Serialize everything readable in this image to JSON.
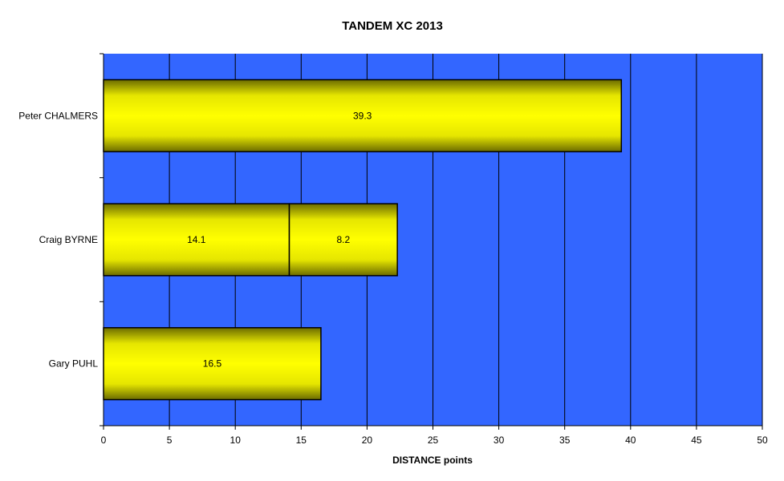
{
  "chart_data": {
    "type": "bar",
    "orientation": "horizontal",
    "stacked": true,
    "title": "TANDEM XC 2013",
    "xlabel": "DISTANCE points",
    "ylabel": "",
    "xlim": [
      0,
      50
    ],
    "x_ticks": [
      "0",
      "5",
      "10",
      "15",
      "20",
      "25",
      "30",
      "35",
      "40",
      "45",
      "50"
    ],
    "categories": [
      "Peter CHALMERS",
      "Craig BYRNE",
      "Gary PUHL"
    ],
    "series": [
      {
        "values": [
          39.3,
          14.1,
          16.5
        ],
        "labels": [
          "39.3",
          "14.1",
          "16.5"
        ]
      },
      {
        "values": [
          0,
          8.2,
          0
        ],
        "labels": [
          "",
          "8.2",
          ""
        ]
      }
    ],
    "grid": "vertical",
    "legend": "none",
    "colors": {
      "plot_background": "#3366ff",
      "bar_fill": "#ffff00",
      "bar_shade": "#6b6b00",
      "grid": "#000000",
      "bar_border": "#000000"
    }
  }
}
